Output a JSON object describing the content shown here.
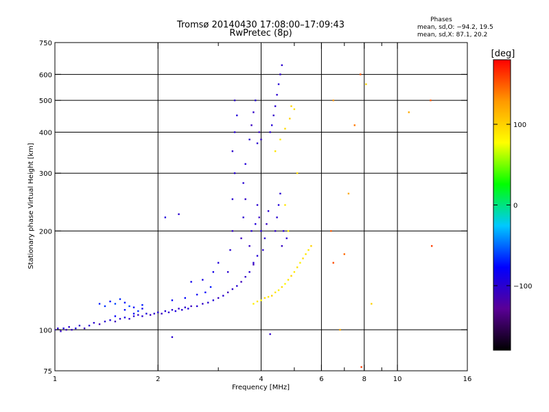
{
  "title": "Tromsø 20140430 17:08:00–17:09:43",
  "subtitle": "RwPretec (8p)",
  "stats": {
    "heading": "Phases",
    "line_o": "mean, sd,O: −94.2, 19.5",
    "line_x": "mean, sd,X:  87.1, 20.2"
  },
  "chart_data": {
    "type": "scatter",
    "title": "Tromsø 20140430 17:08:00–17:09:43",
    "subtitle": "RwPretec (8p)",
    "xlabel": "Frequency [MHz]",
    "ylabel": "Stationary phase Virtual Height [km]",
    "x_scale": "log",
    "y_scale": "log",
    "xlim": [
      1,
      16
    ],
    "ylim": [
      75,
      750
    ],
    "x_ticks": [
      1,
      2,
      4,
      6,
      8,
      10,
      16
    ],
    "x_tick_labels": [
      "1",
      "2",
      "4",
      "6",
      "8",
      "10",
      "16"
    ],
    "x_minor_ticks": [
      3,
      5,
      7,
      9
    ],
    "y_ticks": [
      75,
      100,
      200,
      300,
      400,
      500,
      600,
      750
    ],
    "y_tick_labels": [
      "75",
      "100",
      "200",
      "300",
      "400",
      "500",
      "600",
      "750"
    ],
    "grid": true,
    "grid_x": [
      2,
      4,
      6,
      8,
      10
    ],
    "grid_y": [
      100,
      200,
      300,
      400,
      500,
      600
    ],
    "colorbar": {
      "unit": "[deg]",
      "range": [
        -180,
        180
      ],
      "tick_values": [
        -100,
        0,
        100
      ],
      "tick_labels": [
        "−100",
        "0",
        "100"
      ],
      "colors": [
        "#000000",
        "#5a0096",
        "#0000ff",
        "#00c8ff",
        "#00ff00",
        "#ffff00",
        "#ff9900",
        "#ff0000"
      ]
    },
    "series": [
      {
        "values": [
          [
            1.0,
            100,
            -110
          ],
          [
            1.02,
            101,
            -100
          ],
          [
            1.04,
            99,
            -105
          ],
          [
            1.06,
            101,
            -95
          ],
          [
            1.08,
            100,
            -110
          ],
          [
            1.1,
            102,
            -100
          ],
          [
            1.12,
            100,
            -108
          ],
          [
            1.15,
            101,
            -96
          ],
          [
            1.18,
            103,
            -102
          ],
          [
            1.22,
            101,
            -110
          ],
          [
            1.26,
            103,
            -98
          ],
          [
            1.3,
            105,
            -100
          ],
          [
            1.35,
            104,
            -112
          ],
          [
            1.4,
            106,
            -100
          ],
          [
            1.45,
            107,
            -95
          ],
          [
            1.5,
            106,
            -110
          ],
          [
            1.55,
            108,
            -100
          ],
          [
            1.6,
            109,
            -90
          ],
          [
            1.65,
            108,
            -104
          ],
          [
            1.7,
            110,
            -98
          ],
          [
            1.75,
            111,
            -106
          ],
          [
            1.8,
            110,
            -100
          ],
          [
            1.85,
            112,
            -95
          ],
          [
            1.9,
            111,
            -108
          ],
          [
            1.95,
            112,
            -100
          ],
          [
            2.0,
            113,
            -98
          ],
          [
            2.05,
            112,
            -106
          ],
          [
            2.1,
            114,
            -96
          ],
          [
            2.15,
            113,
            -102
          ],
          [
            2.2,
            115,
            -100
          ],
          [
            2.25,
            114,
            -93
          ],
          [
            2.3,
            116,
            -104
          ],
          [
            2.35,
            115,
            -98
          ],
          [
            2.4,
            117,
            -100
          ],
          [
            2.45,
            116,
            -95
          ],
          [
            2.5,
            118,
            -108
          ],
          [
            2.6,
            118,
            -98
          ],
          [
            2.7,
            120,
            -104
          ],
          [
            2.8,
            121,
            -100
          ],
          [
            2.9,
            123,
            -96
          ],
          [
            3.0,
            125,
            -108
          ],
          [
            3.1,
            127,
            -100
          ],
          [
            3.2,
            130,
            -112
          ],
          [
            3.3,
            133,
            -104
          ],
          [
            3.4,
            136,
            -98
          ],
          [
            3.5,
            140,
            -110
          ],
          [
            3.6,
            145,
            -104
          ],
          [
            3.7,
            150,
            -100
          ],
          [
            3.8,
            158,
            -112
          ],
          [
            3.9,
            168,
            -96
          ],
          [
            1.35,
            120,
            -70
          ],
          [
            1.4,
            118,
            -65
          ],
          [
            1.45,
            122,
            -75
          ],
          [
            1.5,
            120,
            -60
          ],
          [
            1.55,
            124,
            -68
          ],
          [
            1.6,
            121,
            -72
          ],
          [
            1.65,
            118,
            -60
          ],
          [
            1.7,
            117,
            -78
          ],
          [
            1.75,
            114,
            -66
          ],
          [
            1.8,
            119,
            -70
          ],
          [
            1.5,
            110,
            -80
          ],
          [
            1.6,
            115,
            -75
          ],
          [
            1.7,
            112,
            -82
          ],
          [
            1.8,
            116,
            -85
          ],
          [
            2.2,
            123,
            -80
          ],
          [
            2.4,
            125,
            -76
          ],
          [
            2.6,
            128,
            -82
          ],
          [
            2.75,
            130,
            -78
          ],
          [
            2.85,
            135,
            -72
          ],
          [
            2.5,
            140,
            -85
          ],
          [
            2.7,
            142,
            -90
          ],
          [
            2.9,
            150,
            -88
          ],
          [
            3.0,
            160,
            -95
          ],
          [
            3.2,
            150,
            -100
          ],
          [
            3.25,
            175,
            -100
          ],
          [
            3.3,
            200,
            -105
          ],
          [
            3.3,
            250,
            -100
          ],
          [
            3.35,
            300,
            -98
          ],
          [
            3.3,
            350,
            -102
          ],
          [
            3.35,
            400,
            -100
          ],
          [
            3.4,
            450,
            -96
          ],
          [
            3.35,
            500,
            -104
          ],
          [
            3.5,
            190,
            -110
          ],
          [
            3.55,
            220,
            -100
          ],
          [
            3.6,
            250,
            -104
          ],
          [
            3.55,
            280,
            -98
          ],
          [
            3.6,
            320,
            -96
          ],
          [
            3.7,
            380,
            -100
          ],
          [
            3.75,
            420,
            -108
          ],
          [
            3.8,
            460,
            -104
          ],
          [
            3.85,
            500,
            -100
          ],
          [
            3.7,
            180,
            -106
          ],
          [
            3.75,
            200,
            -100
          ],
          [
            3.8,
            160,
            -100
          ],
          [
            3.85,
            210,
            -96
          ],
          [
            3.9,
            240,
            -100
          ],
          [
            3.95,
            220,
            -108
          ],
          [
            4.0,
            200,
            -100
          ],
          [
            4.0,
            380,
            -104
          ],
          [
            4.05,
            175,
            -100
          ],
          [
            4.1,
            190,
            -98
          ],
          [
            4.15,
            210,
            -106
          ],
          [
            4.2,
            230,
            -100
          ],
          [
            4.25,
            400,
            -100
          ],
          [
            4.3,
            420,
            -96
          ],
          [
            4.35,
            450,
            -104
          ],
          [
            4.4,
            480,
            -100
          ],
          [
            4.45,
            520,
            -100
          ],
          [
            4.5,
            560,
            -98
          ],
          [
            4.55,
            600,
            -104
          ],
          [
            4.6,
            640,
            -100
          ],
          [
            4.4,
            200,
            -104
          ],
          [
            4.45,
            220,
            -100
          ],
          [
            4.5,
            240,
            -96
          ],
          [
            4.55,
            260,
            -100
          ],
          [
            4.6,
            180,
            -106
          ],
          [
            4.65,
            200,
            -100
          ],
          [
            3.9,
            370,
            -100
          ],
          [
            3.95,
            400,
            -108
          ],
          [
            2.1,
            220,
            -95
          ],
          [
            2.3,
            225,
            -100
          ],
          [
            2.2,
            95,
            -100
          ],
          [
            4.25,
            97,
            -104
          ],
          [
            4.75,
            190,
            -100
          ]
        ]
      },
      {
        "values": [
          [
            3.8,
            120,
            85
          ],
          [
            3.9,
            122,
            90
          ],
          [
            4.0,
            123,
            80
          ],
          [
            4.1,
            125,
            95
          ],
          [
            4.2,
            126,
            88
          ],
          [
            4.3,
            127,
            100
          ],
          [
            4.4,
            130,
            90
          ],
          [
            4.5,
            132,
            85
          ],
          [
            4.6,
            135,
            95
          ],
          [
            4.7,
            138,
            80
          ],
          [
            4.8,
            142,
            90
          ],
          [
            4.9,
            146,
            100
          ],
          [
            5.0,
            150,
            88
          ],
          [
            5.1,
            155,
            92
          ],
          [
            5.2,
            160,
            85
          ],
          [
            5.3,
            165,
            95
          ],
          [
            5.4,
            170,
            90
          ],
          [
            5.5,
            175,
            88
          ],
          [
            5.6,
            180,
            100
          ],
          [
            4.4,
            350,
            90
          ],
          [
            4.55,
            380,
            85
          ],
          [
            4.7,
            410,
            95
          ],
          [
            4.85,
            440,
            100
          ],
          [
            5.0,
            470,
            92
          ],
          [
            4.9,
            480,
            100
          ],
          [
            4.8,
            200,
            85
          ],
          [
            4.7,
            240,
            90
          ],
          [
            5.1,
            300,
            95
          ],
          [
            6.4,
            200,
            150
          ],
          [
            6.5,
            160,
            155
          ],
          [
            7.0,
            170,
            145
          ],
          [
            7.2,
            260,
            120
          ],
          [
            7.8,
            600,
            150
          ],
          [
            8.1,
            560,
            100
          ],
          [
            8.4,
            120,
            100
          ],
          [
            10.8,
            460,
            120
          ],
          [
            12.5,
            500,
            150
          ],
          [
            6.5,
            500,
            130
          ],
          [
            7.5,
            420,
            140
          ],
          [
            6.8,
            100,
            120
          ],
          [
            7.85,
            77,
            160
          ],
          [
            12.6,
            180,
            160
          ]
        ]
      }
    ]
  }
}
